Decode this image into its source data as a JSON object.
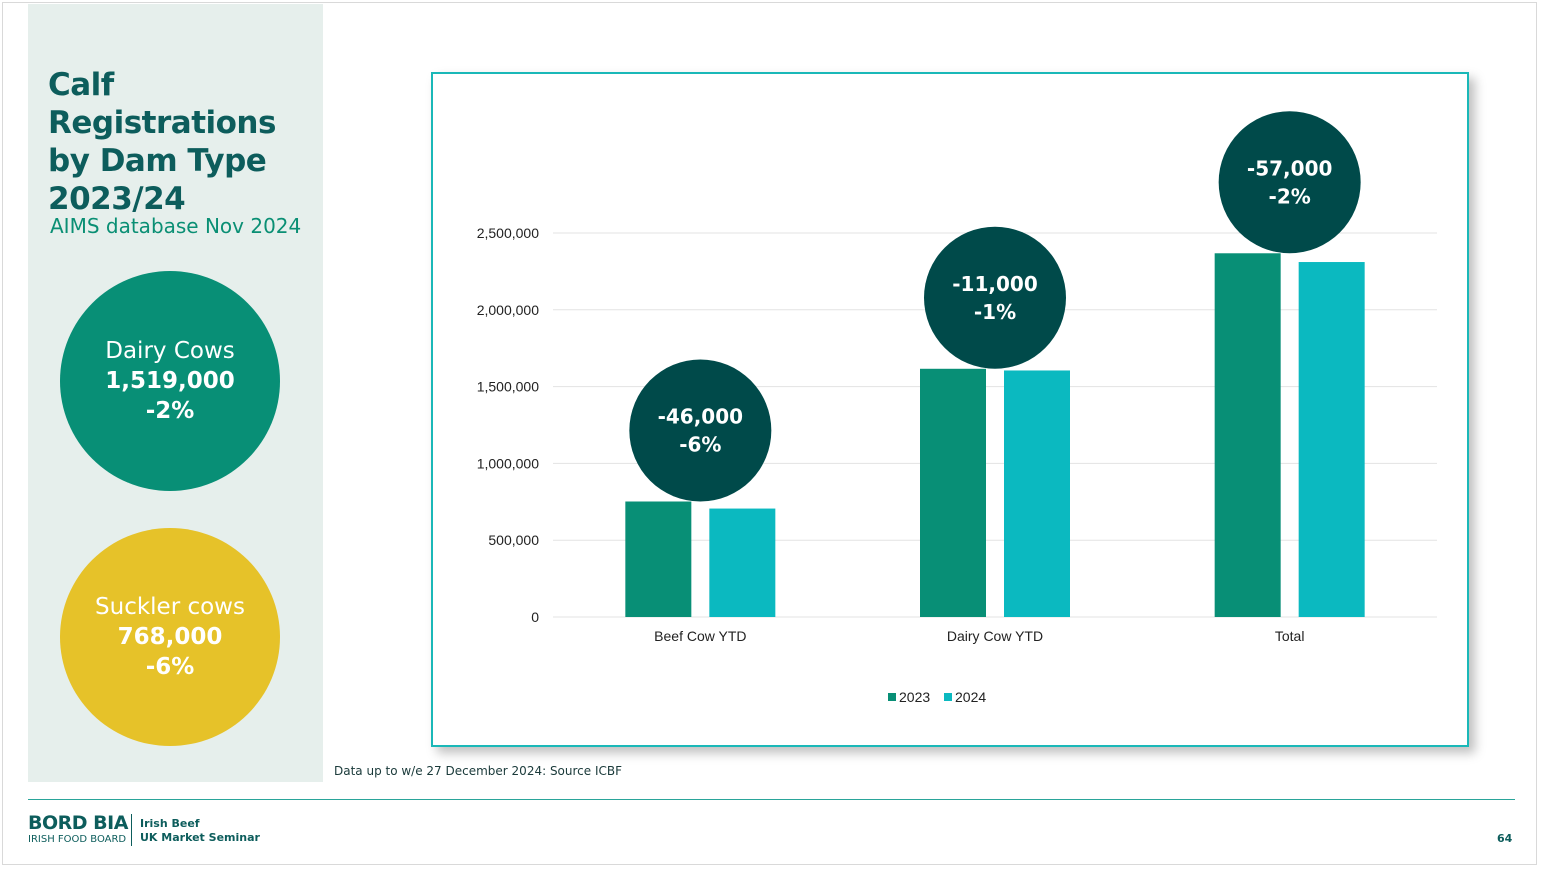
{
  "slide": {
    "title": "Calf Registrations by Dam Type 2023/24",
    "subtitle": "AIMS database Nov 2024",
    "source_note": "Data up to w/e 27 December 2024: Source ICBF",
    "page_number": "64"
  },
  "bubbles": [
    {
      "label": "Dairy Cows",
      "value": "1,519,000",
      "change": "-2%",
      "color": "#088f76"
    },
    {
      "label": "Suckler cows",
      "value": "768,000",
      "change": "-6%",
      "color": "#e6c229"
    }
  ],
  "footer": {
    "brand": "BORD BIA",
    "brand_sub": "IRISH FOOD BOARD",
    "event_line1": "Irish Beef",
    "event_line2": "UK Market Seminar"
  },
  "chart_data": {
    "type": "bar",
    "categories": [
      "Beef Cow YTD",
      "Dairy Cow  YTD",
      "Total"
    ],
    "series": [
      {
        "name": "2023",
        "values": [
          752000,
          1616000,
          2368000
        ],
        "color": "#088f76"
      },
      {
        "name": "2024",
        "values": [
          706000,
          1605000,
          2311000
        ],
        "color": "#0bb9c0"
      }
    ],
    "ylim": [
      0,
      2500000
    ],
    "yticks": [
      0,
      500000,
      1000000,
      1500000,
      2000000,
      2500000
    ],
    "ytick_labels": [
      "0",
      "500,000",
      "1,000,000",
      "1,500,000",
      "2,000,000",
      "2,500,000"
    ],
    "grid": true,
    "legend_position": "bottom",
    "annotations": [
      {
        "category": "Beef Cow YTD",
        "line1": "-46,000",
        "line2": "-6%"
      },
      {
        "category": "Dairy Cow  YTD",
        "line1": "-11,000",
        "line2": "-1%"
      },
      {
        "category": "Total",
        "line1": "-57,000",
        "line2": "-2%"
      }
    ],
    "annotation_color": "#004a4a"
  }
}
